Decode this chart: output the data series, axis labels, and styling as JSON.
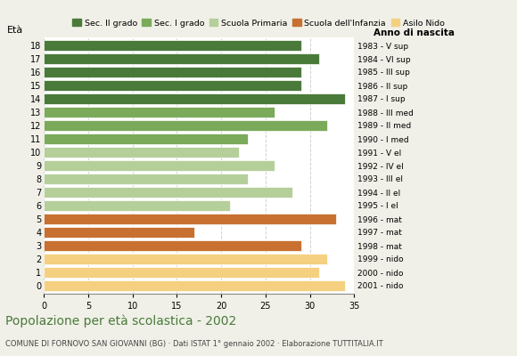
{
  "ages": [
    18,
    17,
    16,
    15,
    14,
    13,
    12,
    11,
    10,
    9,
    8,
    7,
    6,
    5,
    4,
    3,
    2,
    1,
    0
  ],
  "values": [
    29,
    31,
    29,
    29,
    34,
    26,
    32,
    23,
    22,
    26,
    23,
    28,
    21,
    33,
    17,
    29,
    32,
    31,
    34
  ],
  "right_labels": [
    "1983 - V sup",
    "1984 - VI sup",
    "1985 - III sup",
    "1986 - II sup",
    "1987 - I sup",
    "1988 - III med",
    "1989 - II med",
    "1990 - I med",
    "1991 - V el",
    "1992 - IV el",
    "1993 - III el",
    "1994 - II el",
    "1995 - I el",
    "1996 - mat",
    "1997 - mat",
    "1998 - mat",
    "1999 - nido",
    "2000 - nido",
    "2001 - nido"
  ],
  "color_map": {
    "18": "#4a7a3a",
    "17": "#4a7a3a",
    "16": "#4a7a3a",
    "15": "#4a7a3a",
    "14": "#4a7a3a",
    "13": "#7aaa5a",
    "12": "#7aaa5a",
    "11": "#7aaa5a",
    "10": "#b5cf9a",
    "9": "#b5cf9a",
    "8": "#b5cf9a",
    "7": "#b5cf9a",
    "6": "#b5cf9a",
    "5": "#c87030",
    "4": "#c87030",
    "3": "#c87030",
    "2": "#f5d080",
    "1": "#f5d080",
    "0": "#f5d080"
  },
  "legend_labels": [
    "Sec. II grado",
    "Sec. I grado",
    "Scuola Primaria",
    "Scuola dell'Infanzia",
    "Asilo Nido"
  ],
  "legend_colors": [
    "#4a7a3a",
    "#7aaa5a",
    "#b5cf9a",
    "#c87030",
    "#f5d080"
  ],
  "title": "Popolazione per età scolastica - 2002",
  "subtitle": "COMUNE DI FORNOVO SAN GIOVANNI (BG) · Dati ISTAT 1° gennaio 2002 · Elaborazione TUTTITALIA.IT",
  "ylabel_left": "Età",
  "ylabel_right": "Anno di nascita",
  "xlim": [
    0,
    35
  ],
  "xticks": [
    0,
    5,
    10,
    15,
    20,
    25,
    30,
    35
  ],
  "background_color": "#f0f0e8",
  "plot_bg_color": "#ffffff",
  "grid_color": "#cccccc",
  "bar_height": 0.78,
  "dpi": 100,
  "figsize": [
    5.8,
    4.0
  ]
}
